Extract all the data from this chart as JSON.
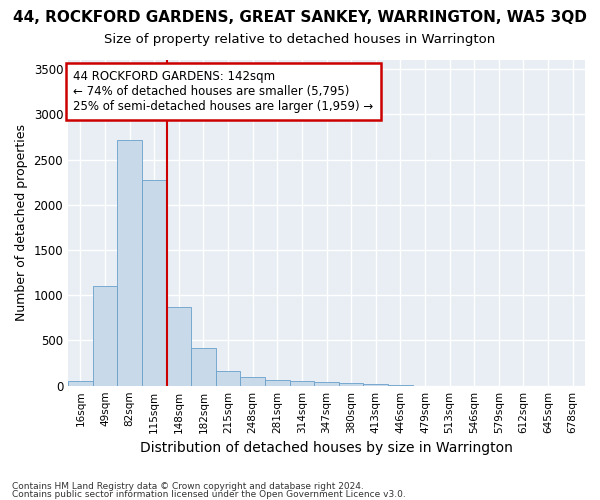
{
  "title": "44, ROCKFORD GARDENS, GREAT SANKEY, WARRINGTON, WA5 3QD",
  "subtitle": "Size of property relative to detached houses in Warrington",
  "xlabel": "Distribution of detached houses by size in Warrington",
  "ylabel": "Number of detached properties",
  "footer1": "Contains HM Land Registry data © Crown copyright and database right 2024.",
  "footer2": "Contains public sector information licensed under the Open Government Licence v3.0.",
  "bin_labels": [
    "16sqm",
    "49sqm",
    "82sqm",
    "115sqm",
    "148sqm",
    "182sqm",
    "215sqm",
    "248sqm",
    "281sqm",
    "314sqm",
    "347sqm",
    "380sqm",
    "413sqm",
    "446sqm",
    "479sqm",
    "513sqm",
    "546sqm",
    "579sqm",
    "612sqm",
    "645sqm",
    "678sqm"
  ],
  "bar_values": [
    50,
    1100,
    2720,
    2270,
    870,
    415,
    165,
    95,
    60,
    55,
    40,
    30,
    15,
    10,
    0,
    0,
    0,
    0,
    0,
    0,
    0
  ],
  "bar_color": "#c8daea",
  "bar_edge_color": "#6aa0cc",
  "vline_color": "#cc0000",
  "vline_pos": 3.5,
  "annotation_line1": "44 ROCKFORD GARDENS: 142sqm",
  "annotation_line2": "← 74% of detached houses are smaller (5,795)",
  "annotation_line3": "25% of semi-detached houses are larger (1,959) →",
  "annotation_box_color": "white",
  "annotation_box_edge_color": "#cc0000",
  "ylim": [
    0,
    3600
  ],
  "yticks": [
    0,
    500,
    1000,
    1500,
    2000,
    2500,
    3000,
    3500
  ],
  "bg_color": "#e8eef4",
  "title_fontsize": 11,
  "subtitle_fontsize": 9.5,
  "ylabel_fontsize": 9,
  "xlabel_fontsize": 10
}
